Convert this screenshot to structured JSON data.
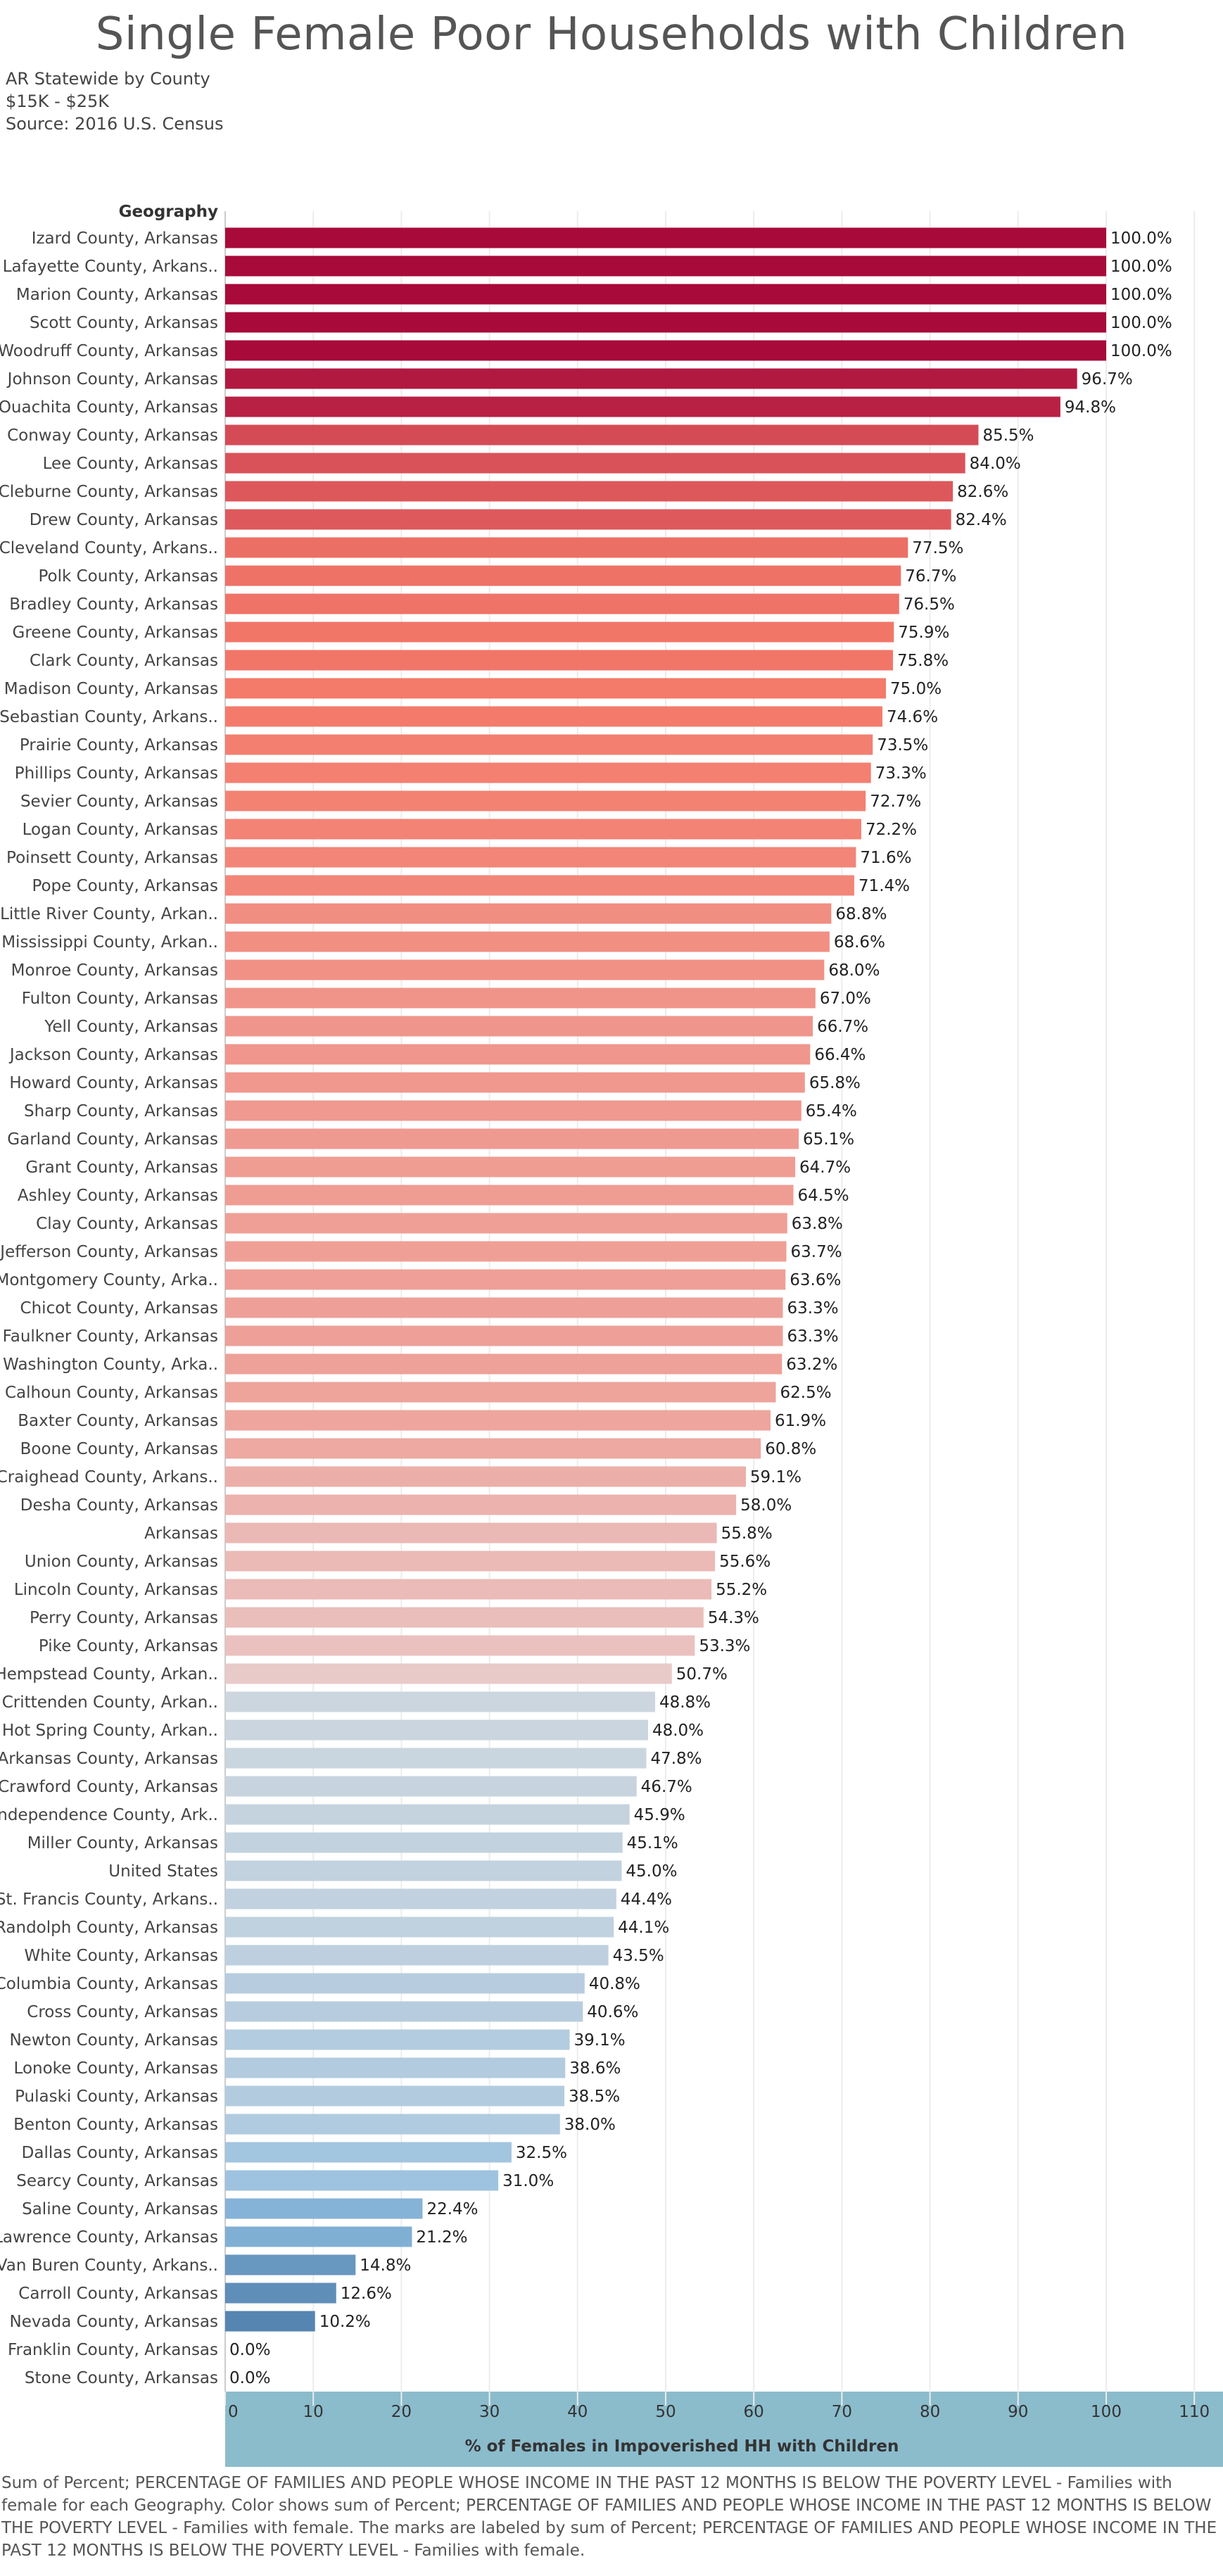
{
  "header": {
    "title": "Single Female Poor Households with Children",
    "subtitles": [
      "AR Statewide by County",
      "$15K - $25K",
      "Source: 2016 U.S. Census"
    ]
  },
  "footnote": "Sum of Percent; PERCENTAGE OF FAMILIES AND PEOPLE WHOSE INCOME IN THE PAST 12 MONTHS IS BELOW THE POVERTY LEVEL - Families with female for each Geography.  Color shows sum of Percent; PERCENTAGE OF FAMILIES AND PEOPLE WHOSE INCOME IN THE PAST 12 MONTHS IS BELOW THE POVERTY LEVEL - Families with female.  The marks are labeled by sum of Percent; PERCENTAGE OF FAMILIES AND PEOPLE WHOSE INCOME IN THE PAST 12 MONTHS IS BELOW THE POVERTY LEVEL - Families with female.",
  "chart_data": {
    "type": "bar",
    "orientation": "horizontal",
    "row_header": "Geography",
    "xlabel": "% of Females in Impoverished HH with Children",
    "xlim": [
      0,
      115
    ],
    "xticks": [
      0,
      10,
      20,
      30,
      40,
      50,
      60,
      70,
      80,
      90,
      100,
      110
    ],
    "grid": true,
    "label_suffix": "%",
    "categories": [
      "Izard County, Arkansas",
      "Lafayette County, Arkans..",
      "Marion County, Arkansas",
      "Scott County, Arkansas",
      "Woodruff County, Arkansas",
      "Johnson County, Arkansas",
      "Ouachita County, Arkansas",
      "Conway County, Arkansas",
      "Lee County, Arkansas",
      "Cleburne County, Arkansas",
      "Drew County, Arkansas",
      "Cleveland County, Arkans..",
      "Polk County, Arkansas",
      "Bradley County, Arkansas",
      "Greene County, Arkansas",
      "Clark County, Arkansas",
      "Madison County, Arkansas",
      "Sebastian County, Arkans..",
      "Prairie County, Arkansas",
      "Phillips County, Arkansas",
      "Sevier County, Arkansas",
      "Logan County, Arkansas",
      "Poinsett County, Arkansas",
      "Pope County, Arkansas",
      "Little River County, Arkan..",
      "Mississippi County, Arkan..",
      "Monroe County, Arkansas",
      "Fulton County, Arkansas",
      "Yell County, Arkansas",
      "Jackson County, Arkansas",
      "Howard County, Arkansas",
      "Sharp County, Arkansas",
      "Garland County, Arkansas",
      "Grant County, Arkansas",
      "Ashley County, Arkansas",
      "Clay County, Arkansas",
      "Jefferson County, Arkansas",
      "Montgomery County, Arka..",
      "Chicot County, Arkansas",
      "Faulkner County, Arkansas",
      "Washington County, Arka..",
      "Calhoun County, Arkansas",
      "Baxter County, Arkansas",
      "Boone County, Arkansas",
      "Craighead County, Arkans..",
      "Desha County, Arkansas",
      "Arkansas",
      "Union County, Arkansas",
      "Lincoln County, Arkansas",
      "Perry County, Arkansas",
      "Pike County, Arkansas",
      "Hempstead County, Arkan..",
      "Crittenden County, Arkan..",
      "Hot Spring County, Arkan..",
      "Arkansas County, Arkansas",
      "Crawford County, Arkansas",
      "Independence County, Ark..",
      "Miller County, Arkansas",
      "United States",
      "St. Francis County, Arkans..",
      "Randolph County, Arkansas",
      "White County, Arkansas",
      "Columbia County, Arkansas",
      "Cross County, Arkansas",
      "Newton County, Arkansas",
      "Lonoke County, Arkansas",
      "Pulaski County, Arkansas",
      "Benton County, Arkansas",
      "Dallas County, Arkansas",
      "Searcy County, Arkansas",
      "Saline County, Arkansas",
      "Lawrence County, Arkansas",
      "Van Buren County, Arkans..",
      "Carroll County, Arkansas",
      "Nevada County, Arkansas",
      "Franklin County, Arkansas",
      "Stone County, Arkansas"
    ],
    "values": [
      100.0,
      100.0,
      100.0,
      100.0,
      100.0,
      96.7,
      94.8,
      85.5,
      84.0,
      82.6,
      82.4,
      77.5,
      76.7,
      76.5,
      75.9,
      75.8,
      75.0,
      74.6,
      73.5,
      73.3,
      72.7,
      72.2,
      71.6,
      71.4,
      68.8,
      68.6,
      68.0,
      67.0,
      66.7,
      66.4,
      65.8,
      65.4,
      65.1,
      64.7,
      64.5,
      63.8,
      63.7,
      63.6,
      63.3,
      63.3,
      63.2,
      62.5,
      61.9,
      60.8,
      59.1,
      58.0,
      55.8,
      55.6,
      55.2,
      54.3,
      53.3,
      50.7,
      48.8,
      48.0,
      47.8,
      46.7,
      45.9,
      45.1,
      45.0,
      44.4,
      44.1,
      43.5,
      40.8,
      40.6,
      39.1,
      38.6,
      38.5,
      38.0,
      32.5,
      31.0,
      22.4,
      21.2,
      14.8,
      12.6,
      10.2,
      0.0,
      0.0
    ],
    "color_scale": {
      "type": "diverging",
      "low": "#2f5f92",
      "mid_low": "#cfd7df",
      "mid_high": "#e8cccc",
      "high": "#a80a3a"
    },
    "axis_band_color": "#8bbccc"
  }
}
